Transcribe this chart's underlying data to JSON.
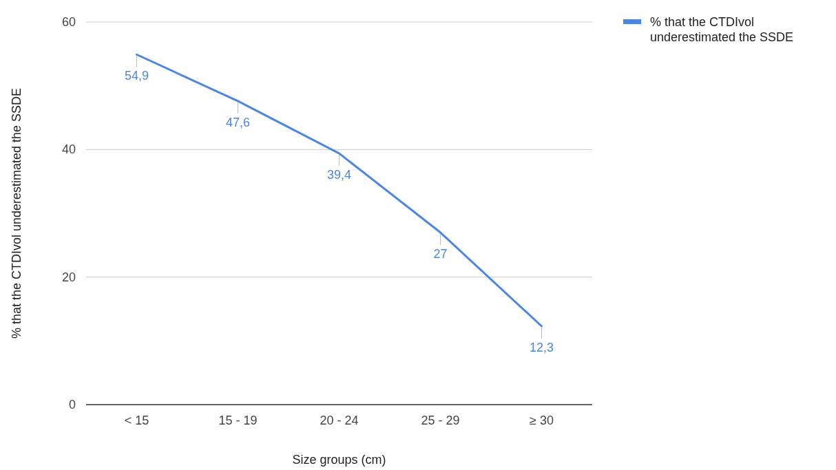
{
  "chart_data": {
    "type": "line",
    "xlabel": "Size groups (cm)",
    "ylabel": "% that the CTDIvol underestimated the SSDE",
    "categories": [
      "< 15",
      "15 - 19",
      "20 - 24",
      "25 - 29",
      "≥ 30"
    ],
    "series": [
      {
        "name": "% that the CTDIvol underestimated the SSDE",
        "color": "#4a86e8",
        "values": [
          54.9,
          47.6,
          39.4,
          27,
          12.3
        ],
        "value_labels": [
          "54,9",
          "47,6",
          "39,4",
          "27",
          "12,3"
        ]
      }
    ],
    "ylim": [
      0,
      60
    ],
    "yticks": [
      0,
      20,
      40,
      60
    ],
    "grid": "y",
    "legend": "top right",
    "marker": "none",
    "line_style": "solid"
  }
}
